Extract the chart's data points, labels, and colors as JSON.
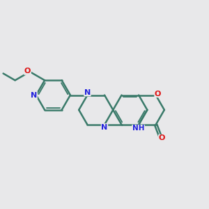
{
  "bg_color": "#e8e8ea",
  "bond_color": "#3a7a6a",
  "bond_width": 1.8,
  "N_color": "#2222dd",
  "O_color": "#dd1111",
  "font_size": 8.0,
  "fig_size": [
    3.0,
    3.0
  ],
  "dpi": 100,
  "xlim": [
    -1.5,
    10.5
  ],
  "ylim": [
    -1.0,
    7.5
  ]
}
